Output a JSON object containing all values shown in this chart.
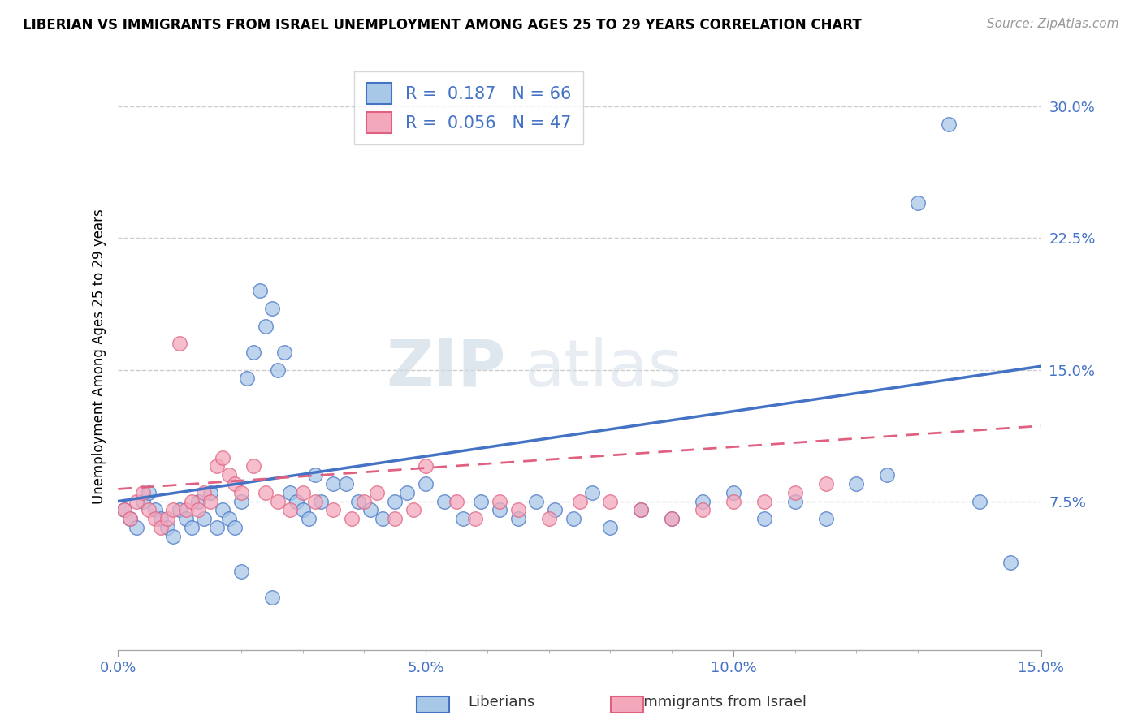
{
  "title": "LIBERIAN VS IMMIGRANTS FROM ISRAEL UNEMPLOYMENT AMONG AGES 25 TO 29 YEARS CORRELATION CHART",
  "source": "Source: ZipAtlas.com",
  "ylabel": "Unemployment Among Ages 25 to 29 years",
  "xlim": [
    0.0,
    0.15
  ],
  "ylim": [
    -0.01,
    0.325
  ],
  "yticks": [
    0.075,
    0.15,
    0.225,
    0.3
  ],
  "ytick_labels": [
    "7.5%",
    "15.0%",
    "22.5%",
    "30.0%"
  ],
  "xticks": [
    0.0,
    0.05,
    0.1,
    0.15
  ],
  "xtick_labels": [
    "0.0%",
    "5.0%",
    "10.0%",
    "15.0%"
  ],
  "legend_x_label": "Liberians",
  "legend_pink_label": "Immigrants from Israel",
  "blue_R": "0.187",
  "blue_N": "66",
  "pink_R": "0.056",
  "pink_N": "47",
  "blue_color": "#a8c8e8",
  "pink_color": "#f4a8bc",
  "blue_line_color": "#4472c4",
  "pink_line_color": "#e06080",
  "watermark_zip": "ZIP",
  "watermark_atlas": "atlas",
  "blue_x": [
    0.001,
    0.002,
    0.003,
    0.004,
    0.005,
    0.006,
    0.007,
    0.008,
    0.009,
    0.01,
    0.011,
    0.012,
    0.013,
    0.014,
    0.015,
    0.016,
    0.017,
    0.018,
    0.019,
    0.02,
    0.021,
    0.022,
    0.023,
    0.024,
    0.025,
    0.026,
    0.027,
    0.028,
    0.029,
    0.03,
    0.031,
    0.032,
    0.033,
    0.035,
    0.037,
    0.039,
    0.041,
    0.043,
    0.045,
    0.047,
    0.05,
    0.053,
    0.056,
    0.059,
    0.062,
    0.065,
    0.068,
    0.071,
    0.074,
    0.077,
    0.08,
    0.085,
    0.09,
    0.095,
    0.1,
    0.105,
    0.11,
    0.115,
    0.12,
    0.125,
    0.13,
    0.135,
    0.14,
    0.145,
    0.02,
    0.025
  ],
  "blue_y": [
    0.07,
    0.065,
    0.06,
    0.075,
    0.08,
    0.07,
    0.065,
    0.06,
    0.055,
    0.07,
    0.065,
    0.06,
    0.075,
    0.065,
    0.08,
    0.06,
    0.07,
    0.065,
    0.06,
    0.075,
    0.145,
    0.16,
    0.195,
    0.175,
    0.185,
    0.15,
    0.16,
    0.08,
    0.075,
    0.07,
    0.065,
    0.09,
    0.075,
    0.085,
    0.085,
    0.075,
    0.07,
    0.065,
    0.075,
    0.08,
    0.085,
    0.075,
    0.065,
    0.075,
    0.07,
    0.065,
    0.075,
    0.07,
    0.065,
    0.08,
    0.06,
    0.07,
    0.065,
    0.075,
    0.08,
    0.065,
    0.075,
    0.065,
    0.085,
    0.09,
    0.245,
    0.29,
    0.075,
    0.04,
    0.035,
    0.02
  ],
  "pink_x": [
    0.001,
    0.002,
    0.003,
    0.004,
    0.005,
    0.006,
    0.007,
    0.008,
    0.009,
    0.01,
    0.011,
    0.012,
    0.013,
    0.014,
    0.015,
    0.016,
    0.017,
    0.018,
    0.019,
    0.02,
    0.022,
    0.024,
    0.026,
    0.028,
    0.03,
    0.032,
    0.035,
    0.038,
    0.04,
    0.042,
    0.045,
    0.048,
    0.05,
    0.055,
    0.058,
    0.062,
    0.065,
    0.07,
    0.075,
    0.08,
    0.085,
    0.09,
    0.095,
    0.1,
    0.105,
    0.11,
    0.115
  ],
  "pink_y": [
    0.07,
    0.065,
    0.075,
    0.08,
    0.07,
    0.065,
    0.06,
    0.065,
    0.07,
    0.165,
    0.07,
    0.075,
    0.07,
    0.08,
    0.075,
    0.095,
    0.1,
    0.09,
    0.085,
    0.08,
    0.095,
    0.08,
    0.075,
    0.07,
    0.08,
    0.075,
    0.07,
    0.065,
    0.075,
    0.08,
    0.065,
    0.07,
    0.095,
    0.075,
    0.065,
    0.075,
    0.07,
    0.065,
    0.075,
    0.075,
    0.07,
    0.065,
    0.07,
    0.075,
    0.075,
    0.08,
    0.085
  ],
  "blue_trend_x0": 0.0,
  "blue_trend_y0": 0.075,
  "blue_trend_x1": 0.15,
  "blue_trend_y1": 0.152,
  "pink_trend_x0": 0.0,
  "pink_trend_y0": 0.082,
  "pink_trend_x1": 0.15,
  "pink_trend_y1": 0.118
}
